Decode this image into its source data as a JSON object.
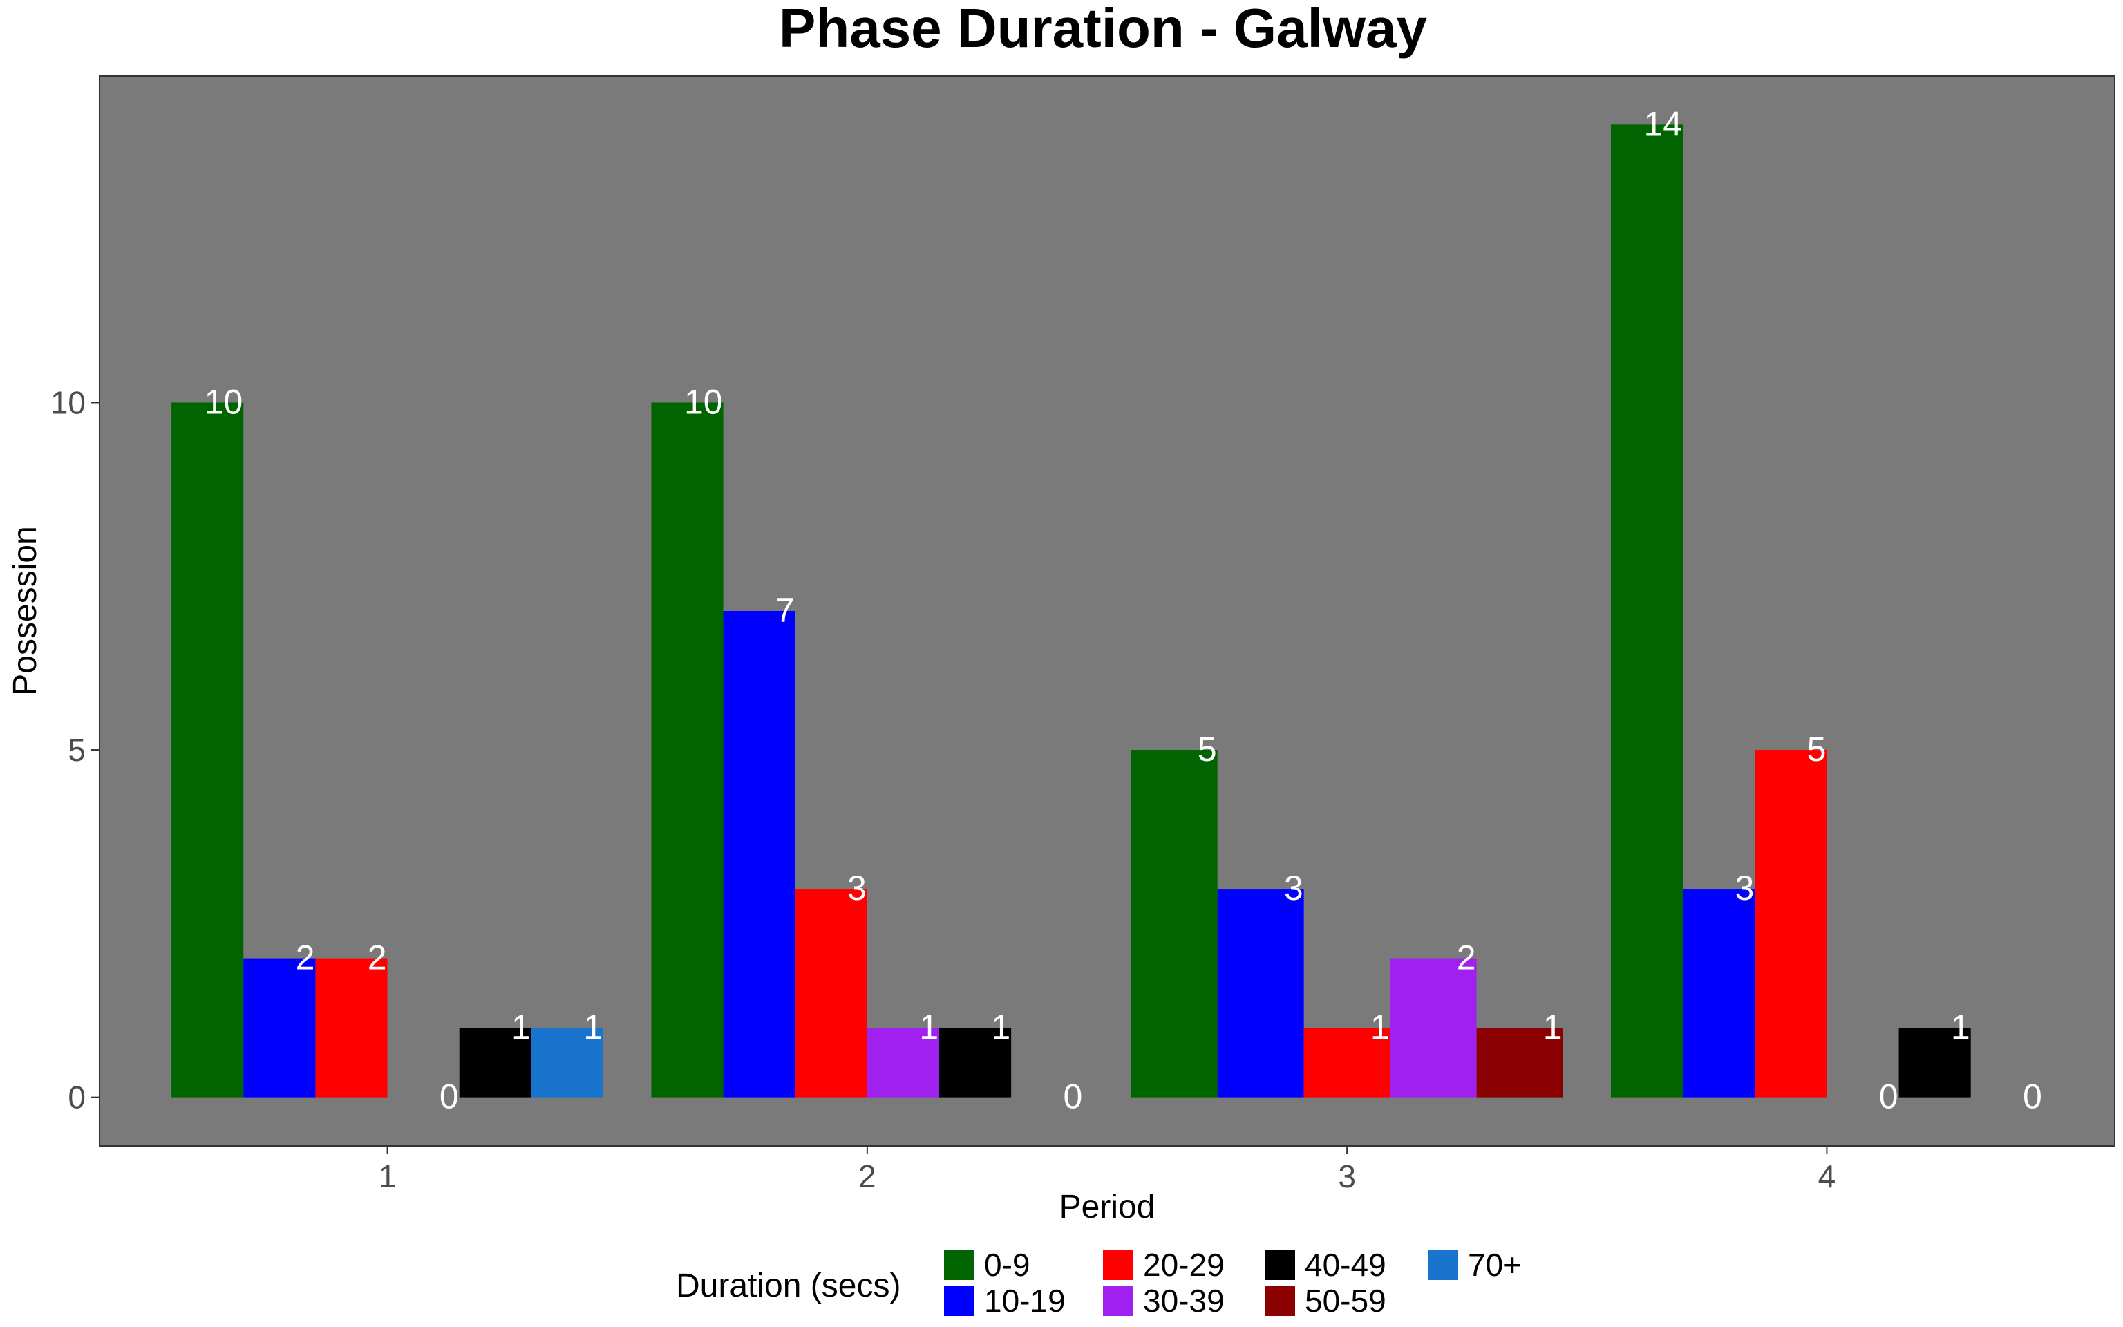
{
  "chart_data": {
    "type": "bar",
    "title": "Phase Duration - Galway",
    "xlabel": "Period",
    "ylabel": "Possession",
    "categories": [
      "1",
      "2",
      "3",
      "4"
    ],
    "y_ticks": [
      "0",
      "5",
      "10"
    ],
    "ylim": [
      -0.7,
      14.7
    ],
    "panel_background": "#7a7a7a",
    "grid": false,
    "legend": {
      "title": "Duration (secs)",
      "position": "bottom"
    },
    "groups": [
      {
        "category": "1",
        "bars": [
          {
            "series": "0-9",
            "value": 10
          },
          {
            "series": "10-19",
            "value": 2
          },
          {
            "series": "20-29",
            "value": 2
          },
          {
            "series": "30-39",
            "value": 0
          },
          {
            "series": "40-49",
            "value": 1
          },
          {
            "series": "70+",
            "value": 1
          }
        ]
      },
      {
        "category": "2",
        "bars": [
          {
            "series": "0-9",
            "value": 10
          },
          {
            "series": "10-19",
            "value": 7
          },
          {
            "series": "20-29",
            "value": 3
          },
          {
            "series": "30-39",
            "value": 1
          },
          {
            "series": "40-49",
            "value": 1
          },
          {
            "series": "50-59",
            "value": 0
          }
        ]
      },
      {
        "category": "3",
        "bars": [
          {
            "series": "0-9",
            "value": 5
          },
          {
            "series": "10-19",
            "value": 3
          },
          {
            "series": "20-29",
            "value": 1
          },
          {
            "series": "30-39",
            "value": 2
          },
          {
            "series": "50-59",
            "value": 1
          }
        ]
      },
      {
        "category": "4",
        "bars": [
          {
            "series": "0-9",
            "value": 14
          },
          {
            "series": "10-19",
            "value": 3
          },
          {
            "series": "20-29",
            "value": 5
          },
          {
            "series": "30-39",
            "value": 0
          },
          {
            "series": "40-49",
            "value": 1
          },
          {
            "series": "70+",
            "value": 0
          }
        ]
      }
    ],
    "series": [
      {
        "name": "0-9",
        "color": "#006400"
      },
      {
        "name": "10-19",
        "color": "#0000ff"
      },
      {
        "name": "20-29",
        "color": "#ff0000"
      },
      {
        "name": "30-39",
        "color": "#a020f0"
      },
      {
        "name": "40-49",
        "color": "#000000"
      },
      {
        "name": "50-59",
        "color": "#8b0000"
      },
      {
        "name": "70+",
        "color": "#1874cd"
      }
    ]
  }
}
